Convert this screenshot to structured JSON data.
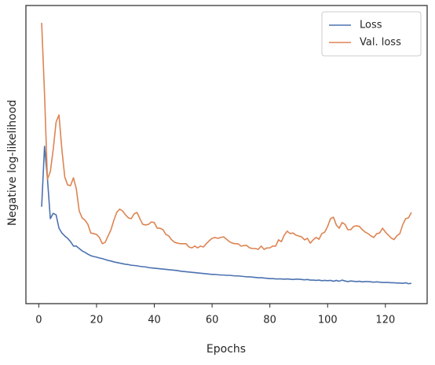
{
  "chart_data": {
    "type": "line",
    "xlabel": "Epochs",
    "ylabel": "Negative log-likelihood",
    "x": [
      1,
      2,
      3,
      4,
      5,
      6,
      7,
      8,
      9,
      10,
      11,
      12,
      13,
      14,
      15,
      16,
      17,
      18,
      19,
      20,
      21,
      22,
      23,
      24,
      25,
      26,
      27,
      28,
      29,
      30,
      31,
      32,
      33,
      34,
      35,
      36,
      37,
      38,
      39,
      40,
      41,
      42,
      43,
      44,
      45,
      46,
      47,
      48,
      49,
      50,
      51,
      52,
      53,
      54,
      55,
      56,
      57,
      58,
      59,
      60,
      61,
      62,
      63,
      64,
      65,
      66,
      67,
      68,
      69,
      70,
      71,
      72,
      73,
      74,
      75,
      76,
      77,
      78,
      79,
      80,
      81,
      82,
      83,
      84,
      85,
      86,
      87,
      88,
      89,
      90,
      91,
      92,
      93,
      94,
      95,
      96,
      97,
      98,
      99,
      100,
      101,
      102,
      103,
      104,
      105,
      106,
      107,
      108,
      109,
      110,
      111,
      112,
      113,
      114,
      115,
      116,
      117,
      118,
      119,
      120,
      121,
      122,
      123,
      124,
      125,
      126,
      127,
      128,
      129
    ],
    "series": [
      {
        "name": "Loss",
        "color": "#4c72b0",
        "values": [
          32.5,
          52.8,
          42,
          28.5,
          30.3,
          29.8,
          25.3,
          23.7,
          22.7,
          21.9,
          20.8,
          19.3,
          19.3,
          18.5,
          17.7,
          17.2,
          16.6,
          16.1,
          15.8,
          15.6,
          15.3,
          15.1,
          14.8,
          14.5,
          14.3,
          14.0,
          13.8,
          13.6,
          13.4,
          13.2,
          13.1,
          12.9,
          12.8,
          12.7,
          12.5,
          12.4,
          12.3,
          12.1,
          12.0,
          11.9,
          11.8,
          11.7,
          11.6,
          11.5,
          11.4,
          11.3,
          11.2,
          11.1,
          10.9,
          10.8,
          10.7,
          10.6,
          10.5,
          10.4,
          10.3,
          10.2,
          10.1,
          10.0,
          9.9,
          9.8,
          9.8,
          9.7,
          9.6,
          9.6,
          9.5,
          9.5,
          9.4,
          9.3,
          9.3,
          9.2,
          9.1,
          9.0,
          9.0,
          8.9,
          8.8,
          8.7,
          8.7,
          8.6,
          8.5,
          8.4,
          8.4,
          8.3,
          8.3,
          8.3,
          8.2,
          8.3,
          8.2,
          8.1,
          8.2,
          8.2,
          8.1,
          8.0,
          8.1,
          7.9,
          7.9,
          7.8,
          7.9,
          7.7,
          7.8,
          7.7,
          7.8,
          7.5,
          7.8,
          7.5,
          7.9,
          7.6,
          7.4,
          7.6,
          7.5,
          7.4,
          7.5,
          7.3,
          7.4,
          7.4,
          7.3,
          7.2,
          7.3,
          7.2,
          7.1,
          7.1,
          7.1,
          7.0,
          7.0,
          6.9,
          6.9,
          6.8,
          7.0,
          6.7,
          6.8
        ]
      },
      {
        "name": "Val. loss",
        "color": "#dd8452",
        "values": [
          94.2,
          70.2,
          41.7,
          44.3,
          51.7,
          60.9,
          63.3,
          51.7,
          42.5,
          39.8,
          39.6,
          42.2,
          38.5,
          31.1,
          28.8,
          28.0,
          26.6,
          23.7,
          23.5,
          23.2,
          22.2,
          20.1,
          20.6,
          22.7,
          24.8,
          28.0,
          30.6,
          31.7,
          31.1,
          29.8,
          28.8,
          28.5,
          30.1,
          30.6,
          28.5,
          26.6,
          26.4,
          26.6,
          27.4,
          27.2,
          25.3,
          25.3,
          24.8,
          23.2,
          22.7,
          21.4,
          20.6,
          20.3,
          20.1,
          20.1,
          20.1,
          19.0,
          18.7,
          19.3,
          18.7,
          19.3,
          19.0,
          20.1,
          21.1,
          21.9,
          22.2,
          21.9,
          22.2,
          22.4,
          21.6,
          20.8,
          20.3,
          20.1,
          20.1,
          19.3,
          19.5,
          19.5,
          18.7,
          18.5,
          18.5,
          18.2,
          19.3,
          18.2,
          18.7,
          18.7,
          19.3,
          19.3,
          21.4,
          20.8,
          23.0,
          24.3,
          23.5,
          23.7,
          23.0,
          22.7,
          22.4,
          21.4,
          21.9,
          20.3,
          21.4,
          22.2,
          21.6,
          23.5,
          24.0,
          25.9,
          28.5,
          29.0,
          26.4,
          25.3,
          27.2,
          26.6,
          24.8,
          24.8,
          25.9,
          26.1,
          25.9,
          24.8,
          24.0,
          23.5,
          22.7,
          22.2,
          23.5,
          23.7,
          25.3,
          24.0,
          23.0,
          22.0,
          21.5,
          22.8,
          23.5,
          26.5,
          28.5,
          28.8,
          30.6
        ]
      }
    ],
    "xlim": [
      -4.45,
      134.45
    ],
    "xticks": [
      0,
      20,
      40,
      60,
      80,
      100,
      120
    ],
    "ylim": [
      0,
      100
    ],
    "legend": "upper right",
    "grid": false
  }
}
